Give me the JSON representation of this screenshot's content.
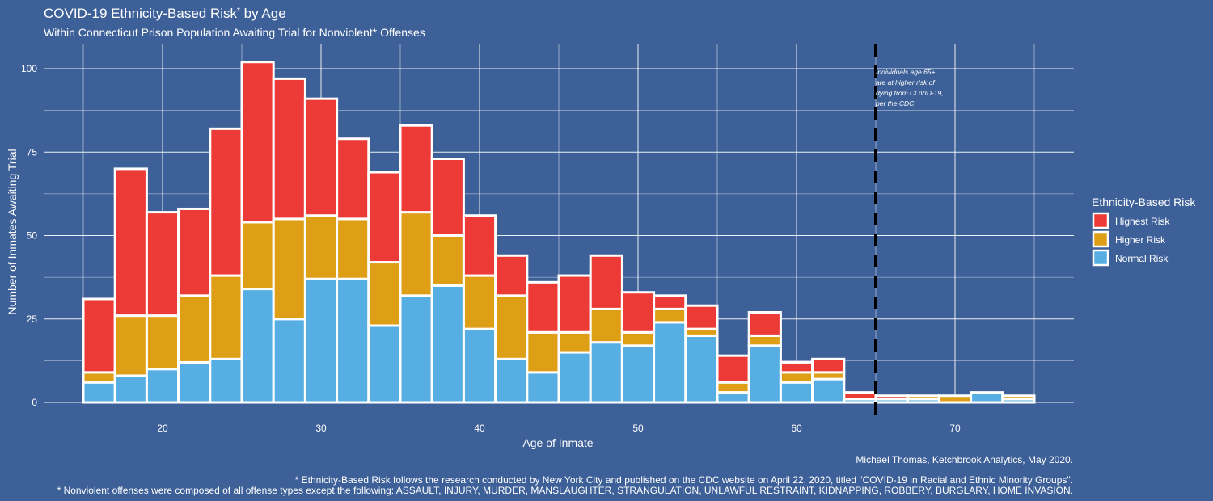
{
  "chart_data": {
    "type": "bar",
    "stacked": true,
    "title": "COVID-19 Ethnicity-Based Risk",
    "title_mark": "*",
    "title_suffix": " by Age",
    "subtitle": "Within Connecticut Prison Population Awaiting Trial for Nonviolent* Offenses",
    "xlabel": "Age of Inmate",
    "ylabel": "Number of Inmates Awaiting Trial",
    "xlim": [
      12.5,
      77.5
    ],
    "ylim": [
      0,
      105
    ],
    "bin_width": 2,
    "x_ticks": [
      20,
      30,
      40,
      50,
      60,
      70
    ],
    "x_tick_labels": [
      "20",
      "30",
      "40",
      "50",
      "60",
      "70"
    ],
    "y_ticks": [
      0,
      25,
      50,
      75,
      100
    ],
    "y_tick_labels": [
      "0",
      "25",
      "50",
      "75",
      "100"
    ],
    "grid": true,
    "legend_title": "Ethnicity-Based Risk",
    "legend_position": "right",
    "bin_starts": [
      15,
      17,
      19,
      21,
      23,
      25,
      27,
      29,
      31,
      33,
      35,
      37,
      39,
      41,
      43,
      45,
      47,
      49,
      51,
      53,
      55,
      57,
      59,
      61,
      63,
      65,
      67,
      69,
      71,
      73
    ],
    "series": [
      {
        "name": "Normal Risk",
        "color": "#56aee2",
        "values": [
          6,
          8,
          10,
          12,
          13,
          34,
          25,
          37,
          37,
          23,
          32,
          35,
          22,
          13,
          9,
          15,
          18,
          17,
          24,
          20,
          3,
          17,
          6,
          7,
          1,
          1,
          1,
          0,
          3,
          1
        ]
      },
      {
        "name": "Higher Risk",
        "color": "#de9e16",
        "values": [
          3,
          18,
          16,
          20,
          25,
          20,
          30,
          19,
          18,
          19,
          25,
          15,
          16,
          19,
          12,
          6,
          10,
          4,
          4,
          2,
          3,
          3,
          3,
          2,
          0,
          0,
          1,
          2,
          0,
          1
        ]
      },
      {
        "name": "Highest Risk",
        "color": "#ec3a37",
        "values": [
          22,
          44,
          31,
          26,
          44,
          48,
          42,
          35,
          24,
          27,
          26,
          23,
          18,
          12,
          15,
          17,
          16,
          12,
          4,
          7,
          8,
          7,
          3,
          4,
          2,
          1,
          0,
          0,
          0,
          0
        ]
      }
    ],
    "legend_order": [
      "Highest Risk",
      "Higher Risk",
      "Normal Risk"
    ],
    "reference_line": {
      "x": 65,
      "style": "dashed",
      "color": "#000000"
    },
    "annotation_lines": [
      "Individuals age 65+",
      "are at higher risk of",
      "dying from COVID-19,",
      "per the CDC"
    ],
    "credit": "Michael Thomas, Ketchbrook Analytics, May 2020.",
    "footnote_1": "* Ethnicity-Based Risk follows the research conducted by New York City and published on the CDC website on April 22, 2020, titled \"COVID-19 in Racial and Ethnic Minority Groups\".",
    "footnote_2": "* Nonviolent offenses were composed of all offense types except the following: ASSAULT, INJURY, MURDER, MANSLAUGHTER, STRANGULATION, UNLAWFUL RESTRAINT, KIDNAPPING, ROBBERY, BURGLARY, HOME INVASION."
  }
}
